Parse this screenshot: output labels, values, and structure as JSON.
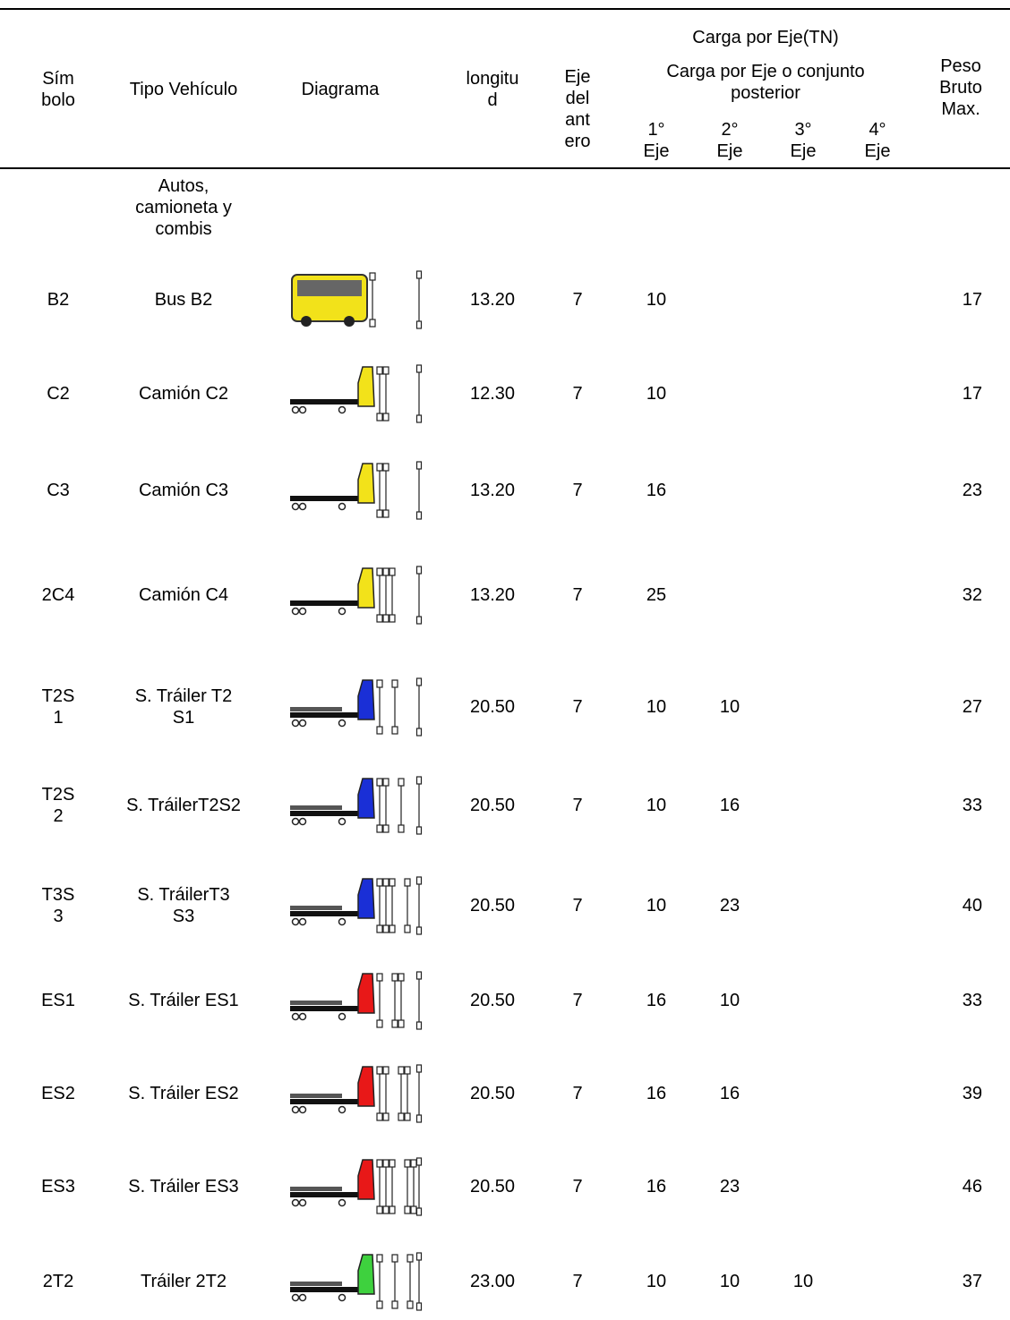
{
  "table": {
    "headers": {
      "symbol": "Sím\nbolo",
      "type": "Tipo Vehículo",
      "diagram": "Diagrama",
      "length": "longitu\nd",
      "front": "Eje\ndel\nant\nero",
      "load_title": "Carga por Eje(TN)",
      "rear_title": "Carga por Eje o conjunto\nposterior",
      "axles": [
        "1°\nEje",
        "2°\nEje",
        "3°\nEje",
        "4°\nEje"
      ],
      "gross": "Peso\nBruto\nMax."
    },
    "rows": [
      {
        "type": "Autos,\ncamioneta y\ncombis"
      },
      {
        "symbol": "B2",
        "type": "Bus B2",
        "length": "13.20",
        "front": 7,
        "axles": [
          10
        ],
        "gross": 17
      },
      {
        "symbol": "C2",
        "type": "Camión C2",
        "length": "12.30",
        "front": 7,
        "axles": [
          10
        ],
        "gross": 17
      },
      {
        "symbol": "C3",
        "type": "Camión C3",
        "length": "13.20",
        "front": 7,
        "axles": [
          16
        ],
        "gross": 23
      },
      {
        "symbol": "2C4",
        "type": "Camión C4",
        "length": "13.20",
        "front": 7,
        "axles": [
          25
        ],
        "gross": 32
      },
      {
        "symbol": "T2S\n1",
        "type": "S. Tráiler T2\nS1",
        "length": "20.50",
        "front": 7,
        "axles": [
          10,
          10
        ],
        "gross": 27
      },
      {
        "symbol": "T2S\n2",
        "type": "S. TráilerT2S2",
        "length": "20.50",
        "front": 7,
        "axles": [
          10,
          16
        ],
        "gross": 33
      },
      {
        "symbol": "T3S\n3",
        "type": "S. TráilerT3\nS3",
        "length": "20.50",
        "front": 7,
        "axles": [
          10,
          23
        ],
        "gross": 40
      },
      {
        "symbol": "ES1",
        "type": "S. Tráiler ES1",
        "length": "20.50",
        "front": 7,
        "axles": [
          16,
          10
        ],
        "gross": 33
      },
      {
        "symbol": "ES2",
        "type": "S. Tráiler ES2",
        "length": "20.50",
        "front": 7,
        "axles": [
          16,
          16
        ],
        "gross": 39
      },
      {
        "symbol": "ES3",
        "type": "S. Tráiler ES3",
        "length": "20.50",
        "front": 7,
        "axles": [
          16,
          23
        ],
        "gross": 46
      },
      {
        "symbol": "2T2",
        "type": "Tráiler 2T2",
        "length": "23.00",
        "front": 7,
        "axles": [
          10,
          10,
          10
        ],
        "gross": 37
      }
    ]
  }
}
